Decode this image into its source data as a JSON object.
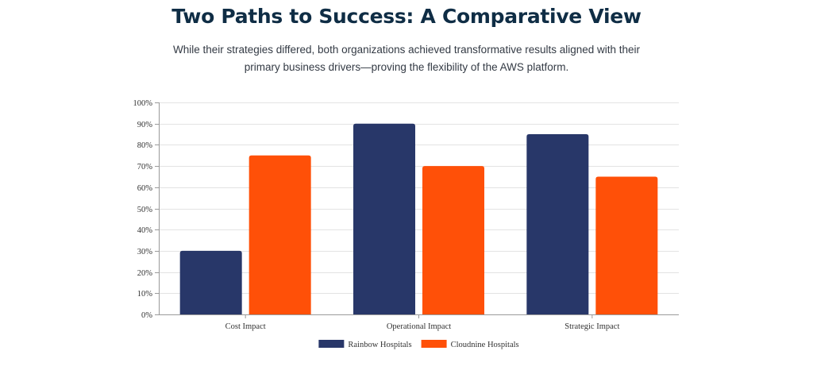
{
  "header": {
    "title": "Two Paths to Success: A Comparative View",
    "subtitle": "While their strategies differed, both organizations achieved transformative results aligned with their primary business drivers—proving the flexibility of the AWS platform."
  },
  "colors": {
    "rainbow": "#283769",
    "cloudnine": "#ff5008",
    "grid": "#e3e3e3",
    "axis": "#9a9a9a"
  },
  "chart_data": {
    "type": "bar",
    "categories": [
      "Cost Impact",
      "Operational Impact",
      "Strategic Impact"
    ],
    "series": [
      {
        "name": "Rainbow Hospitals",
        "values": [
          30,
          90,
          85
        ],
        "color": "#283769"
      },
      {
        "name": "Cloudnine Hospitals",
        "values": [
          75,
          70,
          65
        ],
        "color": "#ff5008"
      }
    ],
    "ylim": [
      0,
      100
    ],
    "yticks": [
      0,
      10,
      20,
      30,
      40,
      50,
      60,
      70,
      80,
      90,
      100
    ],
    "ytick_suffix": "%",
    "grid": true,
    "legend": "bottom-center"
  }
}
